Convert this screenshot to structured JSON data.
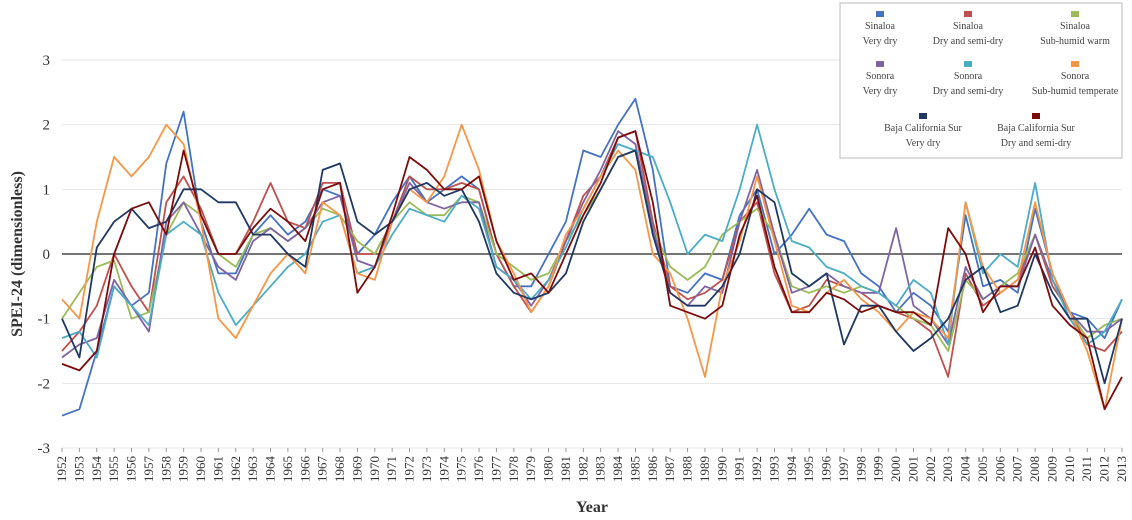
{
  "chart_data": {
    "type": "line",
    "xlabel": "Year",
    "ylabel": "SPEI-24 (dimensionless)",
    "x": [
      1952,
      1953,
      1954,
      1955,
      1956,
      1957,
      1958,
      1959,
      1960,
      1961,
      1962,
      1963,
      1964,
      1965,
      1966,
      1967,
      1968,
      1969,
      1970,
      1971,
      1972,
      1973,
      1974,
      1975,
      1976,
      1977,
      1978,
      1979,
      1980,
      1981,
      1982,
      1983,
      1984,
      1985,
      1986,
      1987,
      1988,
      1989,
      1990,
      1991,
      1992,
      1993,
      1994,
      1995,
      1996,
      1997,
      1998,
      1999,
      2000,
      2001,
      2002,
      2003,
      2004,
      2005,
      2006,
      2007,
      2008,
      2009,
      2010,
      2011,
      2012,
      2013
    ],
    "xlim": [
      1952,
      2013
    ],
    "xticks": [
      1952,
      1953,
      1954,
      1955,
      1956,
      1957,
      1958,
      1959,
      1960,
      1961,
      1962,
      1963,
      1964,
      1965,
      1966,
      1967,
      1968,
      1969,
      1970,
      1971,
      1972,
      1973,
      1974,
      1975,
      1976,
      1977,
      1978,
      1979,
      1980,
      1981,
      1982,
      1983,
      1984,
      1985,
      1986,
      1987,
      1988,
      1989,
      1990,
      1991,
      1992,
      1993,
      1994,
      1995,
      1996,
      1997,
      1998,
      1999,
      2000,
      2001,
      2002,
      2003,
      2004,
      2005,
      2006,
      2007,
      2008,
      2009,
      2010,
      2011,
      2012,
      2013
    ],
    "ylim": [
      -3,
      3
    ],
    "yticks": [
      -3,
      -2,
      -1,
      0,
      1,
      2,
      3
    ],
    "grid": true,
    "legend": "top-right",
    "series": [
      {
        "name": "Sinaloa\nVery dry",
        "color": "#4472c4",
        "values": [
          -2.5,
          -2.4,
          -1.5,
          -0.5,
          -0.8,
          -0.6,
          1.4,
          2.2,
          0.5,
          -0.3,
          -0.3,
          0.3,
          0.6,
          0.3,
          0.5,
          1.0,
          0.9,
          0.0,
          0.3,
          0.8,
          1.2,
          0.8,
          1.0,
          1.2,
          1.0,
          0.0,
          -0.5,
          -0.5,
          0.0,
          0.5,
          1.6,
          1.5,
          2.0,
          2.4,
          1.3,
          -0.5,
          -0.6,
          -0.3,
          -0.4,
          0.6,
          1.0,
          0.0,
          0.3,
          0.7,
          0.3,
          0.2,
          -0.3,
          -0.5,
          -0.9,
          -0.6,
          -0.8,
          -1.2,
          0.6,
          -0.5,
          -0.4,
          -0.6,
          0.7,
          -0.3,
          -0.9,
          -1.0,
          -1.3,
          -0.7
        ]
      },
      {
        "name": "Sinaloa\nDry and semi-dry",
        "color": "#c0504d",
        "values": [
          -1.5,
          -1.2,
          -0.8,
          0.0,
          -0.5,
          -0.9,
          0.8,
          1.2,
          0.7,
          0.0,
          0.0,
          0.5,
          1.1,
          0.5,
          0.4,
          1.1,
          1.1,
          0.0,
          0.0,
          0.5,
          1.2,
          1.0,
          1.0,
          1.1,
          1.0,
          0.0,
          -0.5,
          -0.9,
          -0.5,
          0.2,
          0.9,
          1.2,
          1.8,
          1.9,
          0.5,
          -0.5,
          -0.7,
          -0.6,
          -0.4,
          0.5,
          0.8,
          -0.3,
          -0.9,
          -0.8,
          -0.4,
          -0.5,
          -0.6,
          -0.8,
          -0.9,
          -1.0,
          -1.2,
          -1.9,
          -0.3,
          -0.8,
          -0.6,
          -0.4,
          0.3,
          -0.5,
          -0.9,
          -1.4,
          -1.5,
          -1.2
        ]
      },
      {
        "name": "Sinaloa\nSub-humid warm",
        "color": "#9bbb59",
        "values": [
          -1.0,
          -0.6,
          -0.2,
          -0.1,
          -1.0,
          -0.9,
          0.3,
          0.8,
          0.6,
          0.0,
          -0.2,
          0.3,
          0.4,
          0.2,
          0.4,
          0.7,
          0.6,
          0.2,
          0.0,
          0.5,
          0.8,
          0.6,
          0.6,
          0.9,
          0.8,
          0.0,
          -0.2,
          -0.4,
          -0.3,
          0.2,
          0.6,
          1.0,
          1.5,
          1.6,
          0.4,
          -0.2,
          -0.4,
          -0.2,
          0.3,
          0.5,
          0.7,
          0.3,
          -0.5,
          -0.6,
          -0.5,
          -0.6,
          -0.5,
          -0.6,
          -0.8,
          -1.0,
          -1.1,
          -1.5,
          -0.4,
          -0.7,
          -0.5,
          -0.3,
          0.3,
          -0.4,
          -0.9,
          -1.3,
          -1.1,
          -1.0
        ]
      },
      {
        "name": "Sonora\nVery dry",
        "color": "#8064a2",
        "values": [
          -1.6,
          -1.4,
          -1.3,
          -0.4,
          -0.8,
          -1.2,
          0.5,
          0.8,
          0.3,
          -0.2,
          -0.4,
          0.2,
          0.4,
          0.2,
          0.4,
          0.8,
          0.9,
          -0.1,
          -0.2,
          0.5,
          1.1,
          0.8,
          0.7,
          0.8,
          0.8,
          -0.2,
          -0.4,
          -0.8,
          -0.4,
          0.2,
          0.8,
          1.3,
          1.9,
          1.7,
          0.4,
          -0.6,
          -0.8,
          -0.5,
          -0.6,
          0.5,
          1.3,
          0.3,
          -0.6,
          -0.5,
          -0.3,
          -0.5,
          -0.6,
          -0.6,
          0.4,
          -0.8,
          -1.0,
          -1.4,
          -0.2,
          -0.7,
          -0.5,
          -0.5,
          0.3,
          -0.4,
          -0.9,
          -1.2,
          -1.2,
          -1.0
        ]
      },
      {
        "name": "Sonora\nDry and semi-dry",
        "color": "#4bacc6",
        "values": [
          -1.3,
          -1.2,
          -1.6,
          -0.5,
          -0.8,
          -1.1,
          0.3,
          0.5,
          0.3,
          -0.6,
          -1.1,
          -0.8,
          -0.5,
          -0.2,
          0.0,
          0.5,
          0.6,
          -0.3,
          -0.2,
          0.3,
          0.7,
          0.6,
          0.5,
          0.9,
          0.7,
          -0.2,
          -0.4,
          -0.7,
          -0.4,
          0.1,
          0.7,
          1.2,
          1.7,
          1.6,
          1.5,
          0.8,
          0.0,
          0.3,
          0.2,
          1.0,
          2.0,
          1.0,
          0.2,
          0.1,
          -0.2,
          -0.3,
          -0.5,
          -0.6,
          -0.8,
          -0.4,
          -0.6,
          -1.4,
          0.8,
          -0.3,
          0.0,
          -0.2,
          1.1,
          -0.4,
          -1.0,
          -1.4,
          -1.2,
          -0.7
        ]
      },
      {
        "name": "Sonora\nSub-humid temperate",
        "color": "#f79646",
        "values": [
          -0.7,
          -1.0,
          0.5,
          1.5,
          1.2,
          1.5,
          2.0,
          1.7,
          0.5,
          -1.0,
          -1.3,
          -0.8,
          -0.3,
          0.0,
          -0.3,
          0.8,
          0.6,
          -0.3,
          -0.4,
          0.5,
          1.0,
          0.8,
          1.2,
          2.0,
          1.3,
          0.2,
          -0.3,
          -0.9,
          -0.5,
          0.3,
          0.7,
          1.2,
          1.6,
          1.3,
          0.0,
          -0.3,
          -1.0,
          -1.9,
          -0.5,
          0.2,
          1.2,
          0.2,
          -0.8,
          -0.9,
          -0.6,
          -0.4,
          -0.7,
          -0.9,
          -1.2,
          -0.9,
          -1.0,
          -1.3,
          0.8,
          -0.2,
          -0.6,
          -0.4,
          0.8,
          -0.3,
          -0.9,
          -1.5,
          -2.4,
          -1.0
        ]
      },
      {
        "name": "Baja California Sur\nVery dry",
        "color": "#1f3864",
        "values": [
          -1.0,
          -1.6,
          0.1,
          0.5,
          0.7,
          0.4,
          0.5,
          1.0,
          1.0,
          0.8,
          0.8,
          0.3,
          0.3,
          0.0,
          -0.2,
          1.3,
          1.4,
          0.5,
          0.3,
          0.5,
          1.0,
          1.1,
          0.9,
          1.0,
          0.5,
          -0.3,
          -0.6,
          -0.7,
          -0.6,
          -0.3,
          0.5,
          1.0,
          1.5,
          1.6,
          0.3,
          -0.6,
          -0.8,
          -0.8,
          -0.5,
          0.0,
          1.0,
          0.8,
          -0.3,
          -0.5,
          -0.3,
          -1.4,
          -0.8,
          -0.8,
          -1.2,
          -1.5,
          -1.3,
          -1.0,
          -0.4,
          -0.2,
          -0.9,
          -0.8,
          0.0,
          -0.6,
          -1.0,
          -1.0,
          -2.0,
          -1.0
        ]
      },
      {
        "name": "Baja California Sur\nDry and semi-dry",
        "color": "#7b0c0c",
        "values": [
          -1.7,
          -1.8,
          -1.5,
          0.0,
          0.7,
          0.8,
          0.3,
          1.6,
          0.6,
          0.0,
          0.0,
          0.4,
          0.7,
          0.5,
          0.2,
          1.0,
          1.1,
          -0.6,
          -0.2,
          0.6,
          1.5,
          1.3,
          1.0,
          1.0,
          1.2,
          0.2,
          -0.4,
          -0.3,
          -0.6,
          0.0,
          0.6,
          1.1,
          1.8,
          1.9,
          0.8,
          -0.8,
          -0.9,
          -1.0,
          -0.8,
          0.3,
          0.9,
          -0.2,
          -0.9,
          -0.9,
          -0.6,
          -0.7,
          -0.9,
          -0.8,
          -0.9,
          -0.9,
          -1.1,
          0.4,
          0.0,
          -0.9,
          -0.5,
          -0.5,
          0.1,
          -0.8,
          -1.1,
          -1.3,
          -2.4,
          -1.9
        ]
      }
    ]
  }
}
